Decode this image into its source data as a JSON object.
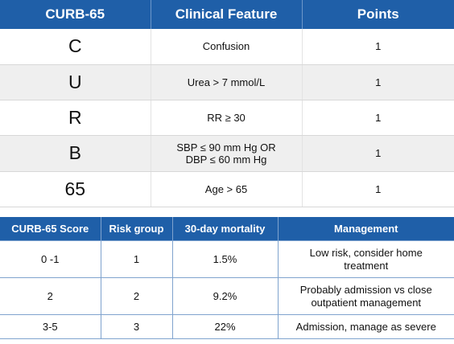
{
  "curb_table": {
    "headers": [
      "CURB-65",
      "Clinical Feature",
      "Points"
    ],
    "rows": [
      {
        "letter": "C",
        "feature": "Confusion",
        "feature2": "",
        "points": "1"
      },
      {
        "letter": "U",
        "feature": "Urea > 7 mmol/L",
        "feature2": "",
        "points": "1"
      },
      {
        "letter": "R",
        "feature": "RR ≥ 30",
        "feature2": "",
        "points": "1"
      },
      {
        "letter": "B",
        "feature": "SBP ≤ 90 mm Hg OR",
        "feature2": "DBP ≤ 60 mm Hg",
        "points": "1"
      },
      {
        "letter": "65",
        "feature": "Age > 65",
        "feature2": "",
        "points": "1"
      }
    ]
  },
  "risk_table": {
    "headers": [
      "CURB-65 Score",
      "Risk group",
      "30-day mortality",
      "Management"
    ],
    "rows": [
      {
        "score": "0 -1",
        "group": "1",
        "mortality": "1.5%",
        "management": "Low risk, consider home",
        "management2": "treatment"
      },
      {
        "score": "2",
        "group": "2",
        "mortality": "9.2%",
        "management": "Probably admission vs close",
        "management2": "outpatient management"
      },
      {
        "score": "3-5",
        "group": "3",
        "mortality": "22%",
        "management": "Admission, manage as severe",
        "management2": ""
      }
    ]
  }
}
